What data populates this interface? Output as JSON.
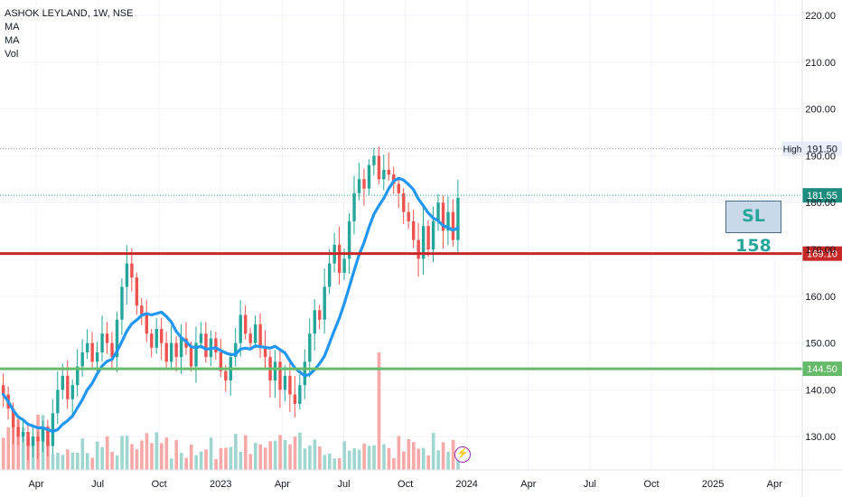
{
  "legend": {
    "title": "ASHOK LEYLAND, 1W, NSE",
    "ma1": "MA",
    "ma2": "MA",
    "vol": "Vol"
  },
  "annotation": {
    "text": "SL 158"
  },
  "icons": {
    "flash": "lightning-icon"
  },
  "colors": {
    "up": "#26a69a",
    "down": "#ef5350",
    "ma": "#2196f3",
    "resistance": "#c62828",
    "support": "#66bb6a",
    "vol_up": "#9fd6cf",
    "vol_down": "#f7a9a7"
  },
  "chart_data": {
    "type": "candlestick",
    "title": "ASHOK LEYLAND, 1W, NSE",
    "ylim": [
      127,
      224
    ],
    "y_ticks": [
      130,
      140,
      150,
      160,
      170,
      180,
      190,
      200,
      210,
      220
    ],
    "y_tick_labels": [
      "130.00",
      "140.00",
      "150.00",
      "160.00",
      "170.00",
      "180.00",
      "190.00",
      "200.00",
      "210.00",
      "220.00"
    ],
    "x_ticks": [
      "Apr",
      "Jul",
      "Oct",
      "2023",
      "Apr",
      "Jul",
      "Oct",
      "2024",
      "Apr",
      "Jul",
      "Oct",
      "2025",
      "Apr"
    ],
    "x_tick_dates": [
      "2022-04",
      "2022-07",
      "2022-10",
      "2023-01",
      "2023-04",
      "2023-07",
      "2023-10",
      "2024-01",
      "2024-04",
      "2024-07",
      "2024-10",
      "2025-01",
      "2025-04"
    ],
    "close_series": [
      139,
      136,
      132,
      130,
      131,
      128,
      130,
      129,
      132,
      128,
      135,
      140,
      143,
      138,
      141,
      145,
      148,
      150,
      146,
      148,
      152,
      150,
      147,
      155,
      162,
      167,
      164,
      158,
      156,
      152,
      149,
      153,
      150,
      146,
      150,
      147,
      151,
      149,
      145,
      150,
      152,
      147,
      151,
      148,
      144,
      142,
      147,
      150,
      156,
      152,
      150,
      154,
      149,
      147,
      142,
      146,
      140,
      143,
      139,
      137,
      141,
      146,
      152,
      157,
      155,
      162,
      167,
      171,
      165,
      168,
      176,
      182,
      185,
      183,
      188,
      190,
      185,
      187,
      186,
      184,
      182,
      178,
      176,
      172,
      168,
      175,
      170,
      176,
      180,
      174,
      178,
      172,
      181
    ],
    "price_lines": [
      {
        "name": "High",
        "value": 191.5,
        "label": "191.50"
      },
      {
        "name": "Last",
        "value": 181.55,
        "label": "181.55"
      },
      {
        "name": "Resistance",
        "value": 169.1,
        "label": "169.10"
      },
      {
        "name": "Support",
        "value": 144.5,
        "label": "144.50"
      }
    ],
    "volume_bars": 93,
    "moving_average": "smooth blue line"
  }
}
